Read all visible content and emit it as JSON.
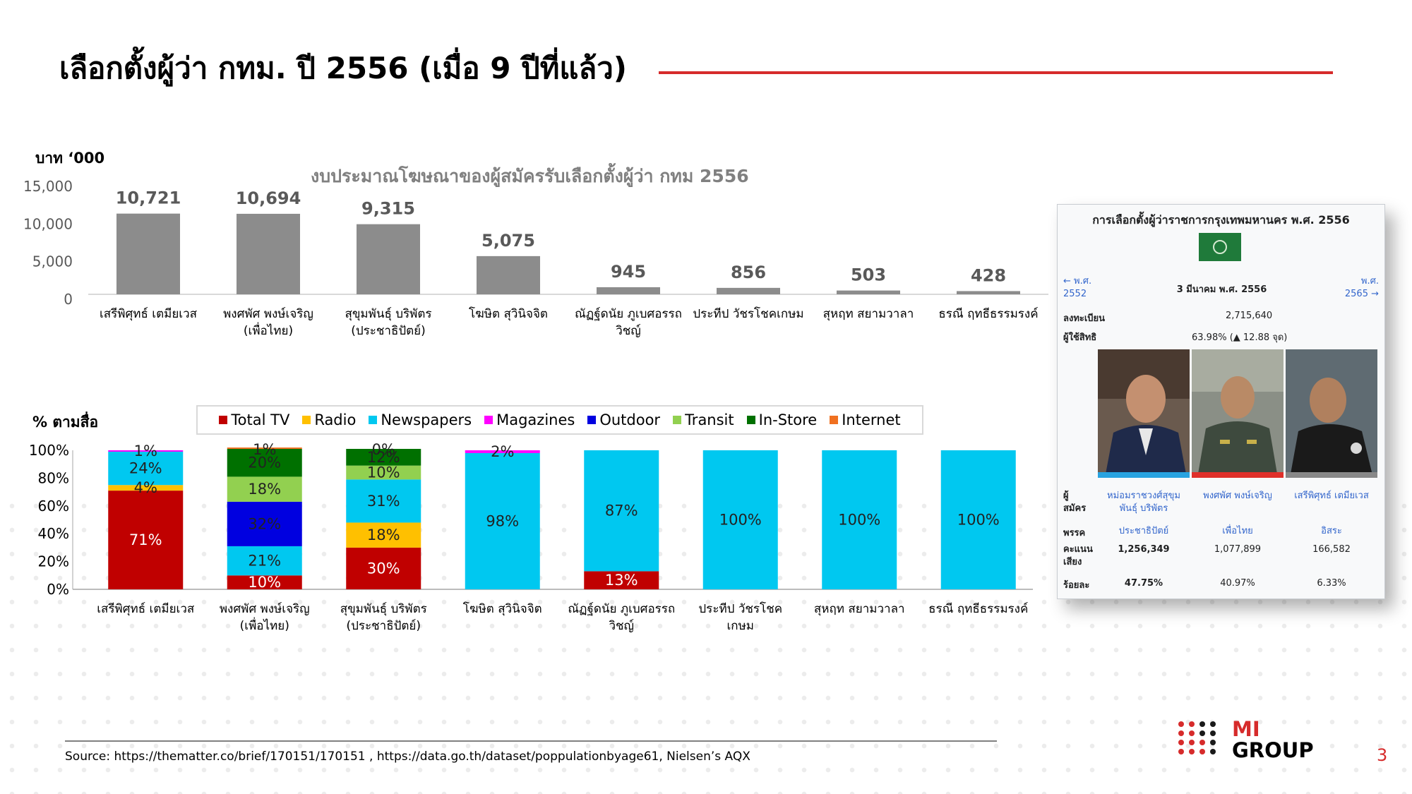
{
  "page": {
    "title": "เลือกตั้งผู้ว่า กทม. ปี 2556 (เมื่อ 9 ปีที่แล้ว)",
    "source": "Source: https://thematter.co/brief/170151/170151 , https://data.go.th/dataset/poppulationbyage61, Nielsen’s AQX",
    "page_number": "3",
    "logo": {
      "line1": "MI",
      "line2": "GROUP"
    },
    "accent_color": "#d62b2b"
  },
  "chart_data": [
    {
      "type": "bar",
      "title": "งบประมาณโฆษณาของผู้สมัครรับเลือกตั้งผู้ว่า กทม 2556",
      "unit_label": "บาท ‘000",
      "xlabel": "",
      "ylabel": "",
      "ylim": [
        0,
        15000
      ],
      "yticks": [
        "15,000",
        "10,000",
        "5,000",
        "0"
      ],
      "bar_color": "#8c8c8c",
      "categories": [
        [
          "เสรีพิศุทธ์ เตมียเวส"
        ],
        [
          "พงศพัศ พงษ์เจริญ",
          "(เพื่อไทย)"
        ],
        [
          "สุขุมพันธุ์ บริพัตร",
          "(ประชาธิปัตย์)"
        ],
        [
          "โฆษิต สุวินิจจิต"
        ],
        [
          "ณัฏฐ์ดนัย ภูเบศอรรถ",
          "วิชญ์"
        ],
        [
          "ประทีป วัชรโชคเกษม"
        ],
        [
          "สุหฤท สยามวาลา"
        ],
        [
          "ธรณี ฤทธีธรรมรงค์"
        ]
      ],
      "values": [
        10721,
        10694,
        9315,
        5075,
        945,
        856,
        503,
        428
      ],
      "value_labels": [
        "10,721",
        "10,694",
        "9,315",
        "5,075",
        "945",
        "856",
        "503",
        "428"
      ],
      "grid": false
    },
    {
      "type": "bar",
      "stacked": true,
      "unit_label": "% ตามสื่อ",
      "ylim": [
        0,
        100
      ],
      "yticks": [
        "100%",
        "80%",
        "60%",
        "40%",
        "20%",
        "0%"
      ],
      "legend_position": "top",
      "categories": [
        [
          "เสรีพิศุทธ์ เตมียเวส"
        ],
        [
          "พงศพัศ พงษ์เจริญ",
          "(เพื่อไทย)"
        ],
        [
          "สุขุมพันธุ์ บริพัตร",
          "(ประชาธิปัตย์)"
        ],
        [
          "โฆษิต สุวินิจจิต"
        ],
        [
          "ณัฏฐ์ดนัย ภูเบศอรรถ",
          "วิชญ์"
        ],
        [
          "ประทีป วัชรโชค",
          "เกษม"
        ],
        [
          "สุหฤท สยามวาลา"
        ],
        [
          "ธรณี ฤทธีธรรมรงค์"
        ]
      ],
      "series": [
        {
          "name": "Total TV",
          "color": "#c00000",
          "values": [
            71,
            10,
            30,
            0,
            13,
            0,
            0,
            0
          ]
        },
        {
          "name": "Radio",
          "color": "#ffc000",
          "values": [
            4,
            0,
            18,
            0,
            0,
            0,
            0,
            0
          ]
        },
        {
          "name": "Newspapers",
          "color": "#00c8f0",
          "values": [
            24,
            21,
            31,
            98,
            87,
            100,
            100,
            100
          ]
        },
        {
          "name": "Magazines",
          "color": "#ff00ff",
          "values": [
            1,
            0,
            0,
            2,
            0,
            0,
            0,
            0
          ]
        },
        {
          "name": "Outdoor",
          "color": "#0000e0",
          "values": [
            0,
            32,
            0,
            0,
            0,
            0,
            0,
            0
          ]
        },
        {
          "name": "Transit",
          "color": "#92d050",
          "values": [
            0,
            18,
            10,
            0,
            0,
            0,
            0,
            0
          ]
        },
        {
          "name": "In-Store",
          "color": "#007000",
          "values": [
            0,
            20,
            12,
            0,
            0,
            0,
            0,
            0
          ]
        },
        {
          "name": "Internet",
          "color": "#f07020",
          "values": [
            0,
            1,
            0,
            0,
            0,
            0,
            0,
            0
          ]
        }
      ],
      "data_labels": [
        [
          "71%",
          "4%",
          "24%",
          "1%"
        ],
        [
          "10%",
          "21%",
          "32%",
          "18%",
          "20%",
          "1%"
        ],
        [
          "30%",
          "18%",
          "31%",
          "10%",
          "12%",
          "0%"
        ],
        [
          "98%",
          "2%"
        ],
        [
          "13%",
          "87%"
        ],
        [
          "100%"
        ],
        [
          "100%"
        ],
        [
          "100%"
        ]
      ]
    }
  ],
  "infobox": {
    "title": "การเลือกตั้งผู้ว่าราชการกรุงเทพมหานคร พ.ศ. 2556",
    "prev": {
      "line1": "← พ.ศ.",
      "line2": "2552"
    },
    "date": "3 มีนาคม พ.ศ. 2556",
    "next": {
      "line1": "พ.ศ.",
      "line2": "2565 →"
    },
    "registered_label": "ลงทะเบียน",
    "registered_value": "2,715,640",
    "turnout_label": "ผู้ใช้สิทธิ",
    "turnout_value": "63.98% (▲ 12.88 จุด)",
    "candidate_label": [
      "ผู้",
      "สมัคร"
    ],
    "party_label": "พรรค",
    "votes_label": [
      "คะแนน",
      "เสียง"
    ],
    "percent_label": "ร้อยละ",
    "candidates": [
      {
        "name": [
          "หม่อมราชวงศ์สุขุม",
          "พันธุ์ บริพัตร"
        ],
        "party": "ประชาธิปัตย์",
        "votes": "1,256,349",
        "percent": "47.75%",
        "color": "#29a3e0"
      },
      {
        "name": [
          "พงศพัศ พงษ์เจริญ"
        ],
        "party": "เพื่อไทย",
        "votes": "1,077,899",
        "percent": "40.97%",
        "color": "#e0302a"
      },
      {
        "name": [
          "เสรีพิศุทธ์ เตมียเวส"
        ],
        "party": "อิสระ",
        "votes": "166,582",
        "percent": "6.33%",
        "color": "#888888"
      }
    ]
  }
}
